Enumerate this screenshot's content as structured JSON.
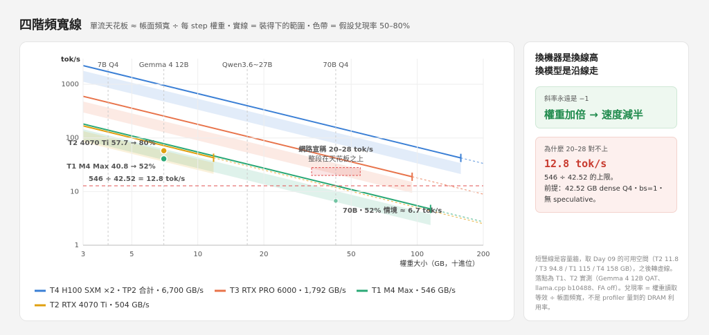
{
  "header": {
    "title": "四階頻寬線",
    "subtitle": "單流天花板 ≈ 帳面頻寬 ÷ 每 step 權重・實線 = 裝得下的範圍・色帶 = 假設兌現率 50–80%"
  },
  "chart_data": {
    "type": "line",
    "y_label": "tok/s",
    "x_label": "權重大小（GB，十進位）",
    "log_x": true,
    "log_y": true,
    "xlim": [
      3,
      200
    ],
    "ylim": [
      1,
      3000
    ],
    "xticks": [
      3,
      5,
      10,
      20,
      50,
      100,
      200
    ],
    "yticks": [
      1,
      10,
      100,
      1000
    ],
    "grid": true,
    "band": [
      50,
      80
    ],
    "series": [
      {
        "name": "T4 H100 SXM ×2・TP2 合計・6,700 GB/s",
        "color": "#3a7fd5",
        "bandwidth": 6700,
        "capacity": 158
      },
      {
        "name": "T3 RTX PRO 6000・1,792 GB/s",
        "color": "#e8734a",
        "bandwidth": 1792,
        "capacity": 94.8
      },
      {
        "name": "T1 M4 Max・546 GB/s",
        "color": "#2aa876",
        "bandwidth": 546,
        "capacity": 115
      },
      {
        "name": "T2 RTX 4070 Ti・504 GB/s",
        "color": "#e0a010",
        "bandwidth": 504,
        "capacity": 11.8
      }
    ],
    "reference_lines": [
      {
        "label": "7B Q4",
        "x": 3.9
      },
      {
        "label": "Gemma 4 12B",
        "x": 7
      },
      {
        "label": "Qwen3.6~27B",
        "x": 16.8
      },
      {
        "label": "70B Q4",
        "x": 42.52
      }
    ],
    "points": [
      {
        "label": "T2 4070 Ti 57.7 → 80%",
        "x": 7,
        "y": 57.7,
        "color": "#e0a010"
      },
      {
        "label": "T1 M4 Max 40.8 → 52%",
        "x": 7,
        "y": 40.8,
        "color": "#2aa876"
      },
      {
        "label": "70B・52% 情境 ≈ 6.7 tok/s",
        "x": 42.52,
        "y": 6.7,
        "color": "#2aa876"
      }
    ],
    "threshold": {
      "label": "546 ÷ 42.52 = 12.8 tok/s",
      "y": 12.8,
      "color": "#e05050"
    },
    "claim": {
      "label": "網路宣稱 20–28 tok/s",
      "note": "整段在天花板之上",
      "x": [
        33,
        55
      ],
      "y": [
        20,
        28
      ],
      "color": "#e05050"
    }
  },
  "side": {
    "title": [
      "換機器是換線高",
      "換模型是沿線走"
    ],
    "slope": {
      "label": "斜率永遠是 −1",
      "text": "權重加倍 → 速度減半"
    },
    "why": {
      "label": "為什麼 20–28 對不上",
      "value": "12.8 tok/s",
      "lines": [
        "546 ÷ 42.52 的上限。",
        "前提：42.52 GB dense Q4・bs=1・無 speculative。"
      ]
    },
    "note": "短豎線是容量牆，取 Day 09 的可用空間（T2 11.8 / T3 94.8 / T1 115 / T4 158 GB），之後轉虛線。落點為 T1、T2 實測（Gemma 4 12B QAT、llama.cpp b10488、FA off）。兌現率 = 權重讀取等效 ÷ 帳面頻寬，不是 profiler 量到的 DRAM 利用率。"
  }
}
